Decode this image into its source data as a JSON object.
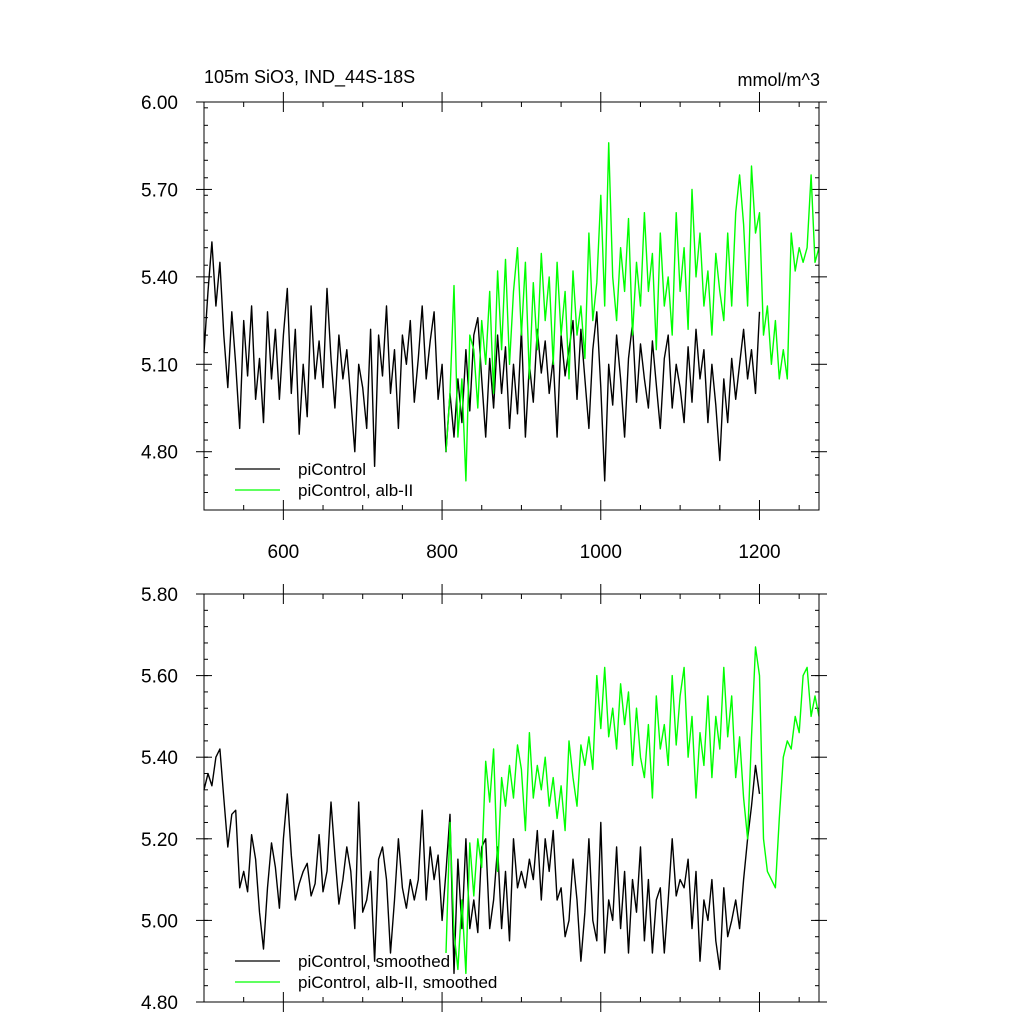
{
  "chart_data": [
    {
      "type": "line",
      "title": "105m SiO3, IND_44S-18S",
      "units": "mmol/m^3",
      "xlim": [
        500,
        1275
      ],
      "ylim": [
        4.6,
        6.0
      ],
      "xticks": [
        600,
        800,
        1000,
        1200
      ],
      "xtick_labels": [
        "600",
        "800",
        "1000",
        "1200"
      ],
      "yticks": [
        4.8,
        5.1,
        5.4,
        5.7,
        6.0
      ],
      "ytick_labels": [
        "4.80",
        "5.10",
        "5.40",
        "5.70",
        "6.00"
      ],
      "grid": false,
      "legend_position": "bottom-left",
      "series": [
        {
          "name": "piControl",
          "color": "#000000",
          "x": [
            500,
            505,
            510,
            515,
            520,
            525,
            530,
            535,
            540,
            545,
            550,
            555,
            560,
            565,
            570,
            575,
            580,
            585,
            590,
            595,
            600,
            605,
            610,
            615,
            620,
            625,
            630,
            635,
            640,
            645,
            650,
            655,
            660,
            665,
            670,
            675,
            680,
            685,
            690,
            695,
            700,
            705,
            710,
            715,
            720,
            725,
            730,
            735,
            740,
            745,
            750,
            755,
            760,
            765,
            770,
            775,
            780,
            785,
            790,
            795,
            800,
            805,
            810,
            815,
            820,
            825,
            830,
            835,
            840,
            845,
            850,
            855,
            860,
            865,
            870,
            875,
            880,
            885,
            890,
            895,
            900,
            905,
            910,
            915,
            920,
            925,
            930,
            935,
            940,
            945,
            950,
            955,
            960,
            965,
            970,
            975,
            980,
            985,
            990,
            995,
            1000,
            1005,
            1010,
            1015,
            1020,
            1025,
            1030,
            1035,
            1040,
            1045,
            1050,
            1055,
            1060,
            1065,
            1070,
            1075,
            1080,
            1085,
            1090,
            1095,
            1100,
            1105,
            1110,
            1115,
            1120,
            1125,
            1130,
            1135,
            1140,
            1145,
            1150,
            1155,
            1160,
            1165,
            1170,
            1175,
            1180,
            1185,
            1190,
            1195,
            1200
          ],
          "y": [
            5.14,
            5.35,
            5.52,
            5.3,
            5.45,
            5.2,
            5.02,
            5.28,
            5.1,
            4.88,
            5.25,
            5.06,
            5.3,
            4.98,
            5.12,
            4.9,
            5.28,
            5.05,
            5.22,
            4.98,
            5.2,
            5.36,
            5.0,
            5.22,
            4.86,
            5.1,
            4.92,
            5.3,
            5.05,
            5.18,
            5.02,
            5.36,
            5.12,
            4.95,
            5.2,
            5.05,
            5.15,
            4.98,
            4.8,
            5.1,
            5.02,
            4.88,
            5.22,
            4.75,
            5.2,
            5.06,
            5.3,
            5.0,
            5.15,
            4.88,
            5.2,
            5.1,
            5.25,
            4.97,
            5.12,
            5.3,
            5.05,
            5.18,
            5.28,
            4.98,
            5.1,
            4.8,
            5.0,
            4.85,
            5.05,
            4.9,
            5.15,
            4.94,
            5.2,
            5.26,
            5.05,
            4.85,
            5.12,
            4.95,
            5.2,
            5.0,
            5.16,
            4.88,
            5.1,
            4.93,
            5.22,
            4.85,
            5.1,
            4.97,
            5.22,
            5.07,
            5.18,
            5.0,
            5.12,
            4.85,
            5.2,
            5.06,
            5.15,
            5.25,
            4.98,
            5.22,
            5.05,
            4.88,
            5.15,
            5.28,
            5.02,
            4.7,
            5.1,
            4.96,
            5.2,
            5.05,
            4.85,
            5.12,
            5.24,
            4.97,
            5.17,
            5.05,
            4.95,
            5.18,
            5.03,
            4.88,
            5.12,
            5.2,
            4.95,
            5.1,
            5.02,
            4.9,
            5.16,
            4.97,
            5.22,
            5.05,
            5.15,
            4.9,
            5.1,
            4.96,
            4.77,
            5.05,
            4.9,
            5.12,
            4.98,
            5.1,
            5.22,
            5.05,
            5.15,
            5.0,
            5.28
          ]
        },
        {
          "name": "piControl, alb-II",
          "color": "#00ff00",
          "x": [
            805,
            810,
            815,
            820,
            825,
            830,
            835,
            840,
            845,
            850,
            855,
            860,
            865,
            870,
            875,
            880,
            885,
            890,
            895,
            900,
            905,
            910,
            915,
            920,
            925,
            930,
            935,
            940,
            945,
            950,
            955,
            960,
            965,
            970,
            975,
            980,
            985,
            990,
            995,
            1000,
            1005,
            1010,
            1015,
            1020,
            1025,
            1030,
            1035,
            1040,
            1045,
            1050,
            1055,
            1060,
            1065,
            1070,
            1075,
            1080,
            1085,
            1090,
            1095,
            1100,
            1105,
            1110,
            1115,
            1120,
            1125,
            1130,
            1135,
            1140,
            1145,
            1150,
            1155,
            1160,
            1165,
            1170,
            1175,
            1180,
            1185,
            1190,
            1195,
            1200,
            1205,
            1210,
            1215,
            1220,
            1225,
            1230,
            1235,
            1240,
            1245,
            1250,
            1255,
            1260,
            1265,
            1270,
            1275
          ],
          "y": [
            4.8,
            5.0,
            5.37,
            4.85,
            5.05,
            4.7,
            5.2,
            5.15,
            4.95,
            5.25,
            5.1,
            5.35,
            5.0,
            5.42,
            5.15,
            5.46,
            5.1,
            5.35,
            5.5,
            5.2,
            5.45,
            5.05,
            5.38,
            5.15,
            5.48,
            5.25,
            5.4,
            5.1,
            5.45,
            5.2,
            5.35,
            5.05,
            5.42,
            5.2,
            5.3,
            5.12,
            5.55,
            5.25,
            5.38,
            5.68,
            5.3,
            5.86,
            5.4,
            5.25,
            5.5,
            5.35,
            5.6,
            5.2,
            5.45,
            5.3,
            5.62,
            5.35,
            5.48,
            5.15,
            5.55,
            5.3,
            5.4,
            5.2,
            5.62,
            5.35,
            5.5,
            5.22,
            5.7,
            5.4,
            5.55,
            5.3,
            5.42,
            5.2,
            5.48,
            5.35,
            5.25,
            5.55,
            5.3,
            5.62,
            5.75,
            5.58,
            5.3,
            5.78,
            5.55,
            5.62,
            5.2,
            5.3,
            5.1,
            5.25,
            5.05,
            5.15,
            5.05,
            5.55,
            5.42,
            5.5,
            5.45,
            5.5,
            5.75,
            5.45,
            5.5
          ]
        }
      ]
    },
    {
      "type": "line",
      "title": "",
      "xlim": [
        500,
        1275
      ],
      "ylim": [
        4.8,
        5.8
      ],
      "xticks": [
        600,
        800,
        1000,
        1200
      ],
      "yticks": [
        4.8,
        5.0,
        5.2,
        5.4,
        5.6,
        5.8
      ],
      "ytick_labels": [
        "4.80",
        "5.00",
        "5.20",
        "5.40",
        "5.60",
        "5.80"
      ],
      "grid": false,
      "legend_position": "bottom-left",
      "series": [
        {
          "name": "piControl, smoothed",
          "color": "#000000",
          "x": [
            500,
            505,
            510,
            515,
            520,
            525,
            530,
            535,
            540,
            545,
            550,
            555,
            560,
            565,
            570,
            575,
            580,
            585,
            590,
            595,
            600,
            605,
            610,
            615,
            620,
            625,
            630,
            635,
            640,
            645,
            650,
            655,
            660,
            665,
            670,
            675,
            680,
            685,
            690,
            695,
            700,
            705,
            710,
            715,
            720,
            725,
            730,
            735,
            740,
            745,
            750,
            755,
            760,
            765,
            770,
            775,
            780,
            785,
            790,
            795,
            800,
            805,
            810,
            815,
            820,
            825,
            830,
            835,
            840,
            845,
            850,
            855,
            860,
            865,
            870,
            875,
            880,
            885,
            890,
            895,
            900,
            905,
            910,
            915,
            920,
            925,
            930,
            935,
            940,
            945,
            950,
            955,
            960,
            965,
            970,
            975,
            980,
            985,
            990,
            995,
            1000,
            1005,
            1010,
            1015,
            1020,
            1025,
            1030,
            1035,
            1040,
            1045,
            1050,
            1055,
            1060,
            1065,
            1070,
            1075,
            1080,
            1085,
            1090,
            1095,
            1100,
            1105,
            1110,
            1115,
            1120,
            1125,
            1130,
            1135,
            1140,
            1145,
            1150,
            1155,
            1160,
            1165,
            1170,
            1175,
            1180,
            1185,
            1190,
            1195,
            1200
          ],
          "y": [
            5.32,
            5.36,
            5.33,
            5.4,
            5.42,
            5.3,
            5.18,
            5.26,
            5.27,
            5.08,
            5.12,
            5.07,
            5.21,
            5.15,
            5.02,
            4.93,
            5.08,
            5.19,
            5.13,
            5.03,
            5.2,
            5.31,
            5.16,
            5.05,
            5.09,
            5.12,
            5.14,
            5.06,
            5.09,
            5.21,
            5.07,
            5.12,
            5.29,
            5.16,
            5.04,
            5.1,
            5.18,
            5.12,
            4.98,
            5.29,
            5.02,
            5.05,
            5.12,
            4.9,
            5.15,
            5.18,
            5.1,
            4.92,
            5.05,
            5.2,
            5.08,
            5.03,
            5.1,
            5.05,
            5.1,
            5.27,
            5.05,
            5.18,
            5.1,
            5.16,
            5.0,
            5.12,
            5.26,
            4.87,
            5.15,
            4.98,
            5.2,
            4.98,
            5.05,
            4.97,
            5.18,
            5.2,
            4.98,
            5.05,
            5.18,
            4.98,
            5.12,
            4.95,
            5.2,
            5.08,
            5.12,
            5.08,
            5.15,
            5.1,
            5.22,
            5.05,
            5.2,
            5.12,
            5.22,
            5.05,
            5.08,
            4.96,
            5.0,
            5.15,
            5.05,
            4.9,
            5.02,
            5.2,
            5.0,
            4.95,
            5.24,
            4.92,
            5.05,
            5.0,
            5.18,
            4.98,
            5.12,
            4.92,
            5.1,
            5.02,
            5.18,
            4.95,
            5.1,
            4.92,
            5.05,
            5.08,
            4.92,
            5.05,
            5.2,
            5.06,
            5.1,
            5.08,
            5.15,
            4.98,
            5.12,
            4.9,
            5.05,
            5.0,
            5.1,
            4.95,
            4.88,
            5.08,
            4.96,
            5.0,
            5.05,
            4.98,
            5.1,
            5.2,
            5.28,
            5.38,
            5.31
          ]
        },
        {
          "name": "piControl, alb-II, smoothed",
          "color": "#00ff00",
          "x": [
            805,
            810,
            815,
            820,
            825,
            830,
            835,
            840,
            845,
            850,
            855,
            860,
            865,
            870,
            875,
            880,
            885,
            890,
            895,
            900,
            905,
            910,
            915,
            920,
            925,
            930,
            935,
            940,
            945,
            950,
            955,
            960,
            965,
            970,
            975,
            980,
            985,
            990,
            995,
            1000,
            1005,
            1010,
            1015,
            1020,
            1025,
            1030,
            1035,
            1040,
            1045,
            1050,
            1055,
            1060,
            1065,
            1070,
            1075,
            1080,
            1085,
            1090,
            1095,
            1100,
            1105,
            1110,
            1115,
            1120,
            1125,
            1130,
            1135,
            1140,
            1145,
            1150,
            1155,
            1160,
            1165,
            1170,
            1175,
            1180,
            1185,
            1190,
            1195,
            1200,
            1205,
            1210,
            1215,
            1220,
            1225,
            1230,
            1235,
            1240,
            1245,
            1250,
            1255,
            1260,
            1265,
            1270,
            1275
          ],
          "y": [
            4.92,
            5.24,
            4.97,
            4.88,
            5.05,
            4.87,
            5.19,
            5.06,
            5.2,
            5.13,
            5.39,
            5.29,
            5.42,
            5.12,
            5.35,
            5.28,
            5.38,
            5.3,
            5.43,
            5.37,
            5.22,
            5.46,
            5.3,
            5.38,
            5.32,
            5.4,
            5.28,
            5.35,
            5.25,
            5.33,
            5.22,
            5.44,
            5.35,
            5.28,
            5.43,
            5.38,
            5.45,
            5.37,
            5.6,
            5.47,
            5.62,
            5.45,
            5.52,
            5.42,
            5.58,
            5.48,
            5.56,
            5.38,
            5.52,
            5.4,
            5.35,
            5.48,
            5.3,
            5.55,
            5.42,
            5.48,
            5.38,
            5.6,
            5.43,
            5.55,
            5.62,
            5.4,
            5.5,
            5.3,
            5.46,
            5.38,
            5.55,
            5.35,
            5.5,
            5.42,
            5.62,
            5.45,
            5.55,
            5.35,
            5.45,
            5.3,
            5.2,
            5.45,
            5.67,
            5.6,
            5.2,
            5.12,
            5.1,
            5.08,
            5.25,
            5.4,
            5.44,
            5.42,
            5.5,
            5.46,
            5.6,
            5.62,
            5.5,
            5.55,
            5.5
          ]
        }
      ]
    }
  ]
}
